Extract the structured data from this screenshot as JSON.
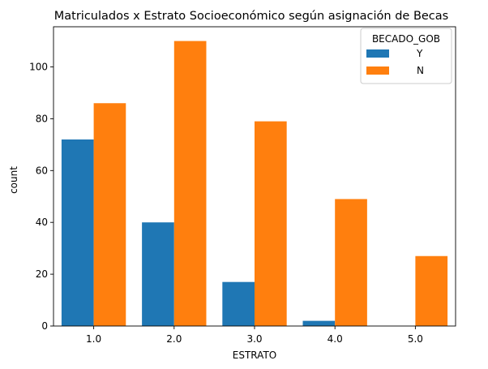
{
  "chart_data": {
    "type": "bar",
    "title": "Matriculados x Estrato Socioeconómico según asignación de Becas",
    "xlabel": "ESTRATO",
    "ylabel": "count",
    "categories": [
      "1.0",
      "2.0",
      "3.0",
      "4.0",
      "5.0"
    ],
    "series": [
      {
        "name": "Y",
        "color": "#1f77b4",
        "values": [
          72,
          40,
          17,
          2,
          0
        ]
      },
      {
        "name": "N",
        "color": "#ff7f0e",
        "values": [
          86,
          110,
          79,
          49,
          27
        ]
      }
    ],
    "ylim": [
      0,
      115.5
    ],
    "yticks": [
      0,
      20,
      40,
      60,
      80,
      100
    ],
    "grid": false,
    "legend": {
      "title": "BECADO_GOB",
      "placement": "top-right"
    }
  }
}
